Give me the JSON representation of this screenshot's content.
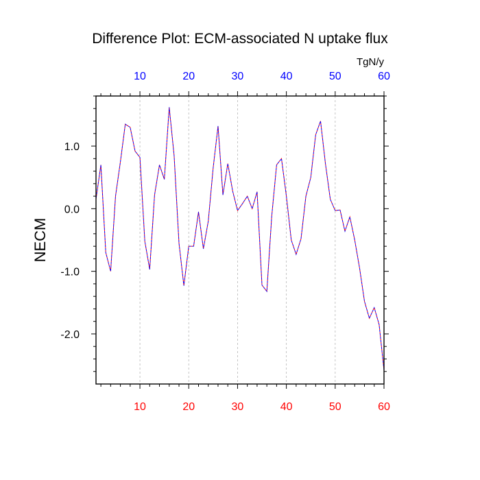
{
  "chart_data": {
    "type": "line",
    "title": "Difference Plot: ECM-associated N uptake flux",
    "ylabel": "NECM",
    "top_axis_unit": "TgN/y",
    "xlim": [
      1,
      60
    ],
    "ylim": [
      -2.8,
      1.8
    ],
    "x_ticks": [
      10,
      20,
      30,
      40,
      50,
      60
    ],
    "x_tick_labels": [
      "10",
      "20",
      "30",
      "40",
      "50",
      "60"
    ],
    "y_ticks": [
      1.0,
      0.0,
      -1.0,
      -2.0
    ],
    "y_tick_labels": [
      "1.0",
      "0.0",
      "-1.0",
      "-2.0"
    ],
    "grid": "vertical dashed",
    "colors": {
      "bottom_tick_labels": "#ff0000",
      "top_tick_labels": "#0000ff",
      "series_line": "#6600cc"
    },
    "series": [
      {
        "x": [
          1,
          2,
          3,
          4,
          5,
          6,
          7,
          8,
          9,
          10,
          11,
          12,
          13,
          14,
          15,
          16,
          17,
          18,
          19,
          20,
          21,
          22,
          23,
          24,
          25,
          26,
          27,
          28,
          29,
          30,
          31,
          32,
          33,
          34,
          35,
          36,
          37,
          38,
          39,
          40,
          41,
          42,
          43,
          44,
          45,
          46,
          47,
          48,
          49,
          50,
          51,
          52,
          53,
          54,
          55,
          56,
          57,
          58,
          59,
          60
        ],
        "values": [
          0.15,
          0.7,
          -0.7,
          -1.0,
          0.2,
          0.75,
          1.35,
          1.3,
          0.92,
          0.82,
          -0.52,
          -0.97,
          0.22,
          0.7,
          0.47,
          1.62,
          0.85,
          -0.55,
          -1.23,
          -0.6,
          -0.6,
          -0.05,
          -0.64,
          -0.2,
          0.65,
          1.32,
          0.22,
          0.72,
          0.28,
          -0.03,
          0.08,
          0.2,
          0.0,
          0.27,
          -1.22,
          -1.32,
          -0.12,
          0.7,
          0.8,
          0.2,
          -0.5,
          -0.73,
          -0.48,
          0.2,
          0.5,
          1.18,
          1.4,
          0.72,
          0.15,
          -0.03,
          -0.02,
          -0.36,
          -0.13,
          -0.5,
          -0.95,
          -1.48,
          -1.75,
          -1.58,
          -1.85,
          -2.58
        ]
      }
    ]
  }
}
